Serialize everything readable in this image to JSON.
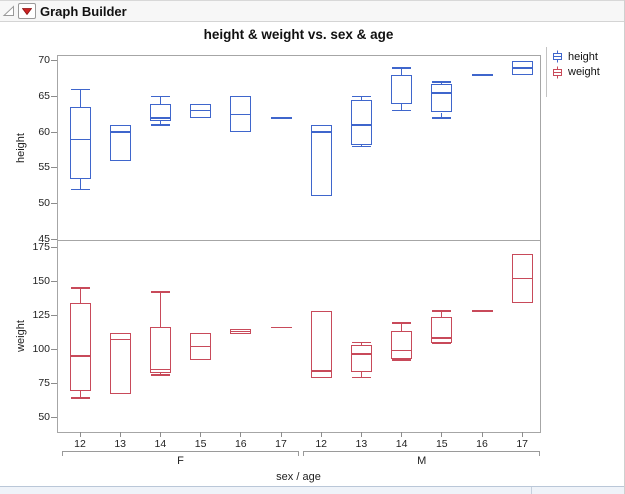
{
  "window": {
    "title": "Graph Builder"
  },
  "icons": {
    "disclosure": "collapse-triangle",
    "menu": "red-triangle-menu"
  },
  "status_bar": {
    "visible": true
  },
  "chart_data": {
    "type": "boxplot",
    "title": "height & weight vs. sex & age",
    "xlabel": "sex / age",
    "grid": false,
    "legend_position": "right",
    "legend": [
      {
        "label": "height",
        "color": "#3F66CC"
      },
      {
        "label": "weight",
        "color": "#C84A5A"
      }
    ],
    "groups": [
      "F",
      "M"
    ],
    "ages": [
      "12",
      "13",
      "14",
      "15",
      "16",
      "17"
    ],
    "panels": [
      {
        "ylabel": "height",
        "color": "#3F66CC",
        "ylim": [
          44.9,
          70.8
        ],
        "yticks": [
          45,
          50,
          55,
          60,
          65,
          70
        ],
        "boxes": [
          {
            "sex": "F",
            "age": "12",
            "lo": 52,
            "q1": 53.5,
            "med": 59,
            "q3": 63.5,
            "hi": 66
          },
          {
            "sex": "F",
            "age": "13",
            "q1": 56,
            "med": 60,
            "q3": 61
          },
          {
            "sex": "F",
            "age": "14",
            "lo": 61,
            "q1": 61.5,
            "med": 62,
            "q3": 64,
            "hi": 65
          },
          {
            "sex": "F",
            "age": "15",
            "q1": 62,
            "med": 63,
            "q3": 64
          },
          {
            "sex": "F",
            "age": "16",
            "q1": 60,
            "med": 62.5,
            "q3": 65
          },
          {
            "sex": "F",
            "age": "17",
            "value": 62
          },
          {
            "sex": "M",
            "age": "12",
            "q1": 51,
            "med": 60,
            "q3": 61
          },
          {
            "sex": "M",
            "age": "13",
            "lo": 58,
            "q1": 58.25,
            "med": 61,
            "q3": 64.5,
            "hi": 65
          },
          {
            "sex": "M",
            "age": "14",
            "lo": 63,
            "q1": 64,
            "med": 64,
            "q3": 68,
            "hi": 69
          },
          {
            "sex": "M",
            "age": "15",
            "lo": 62,
            "q1": 62.75,
            "med": 65.5,
            "q3": 66.75,
            "hi": 67
          },
          {
            "sex": "M",
            "age": "16",
            "value": 68
          },
          {
            "sex": "M",
            "age": "17",
            "q1": 68,
            "med": 69,
            "q3": 70
          }
        ]
      },
      {
        "ylabel": "weight",
        "color": "#C84A5A",
        "ylim": [
          39,
          180.2
        ],
        "yticks": [
          50,
          75,
          100,
          125,
          150,
          175
        ],
        "boxes": [
          {
            "sex": "F",
            "age": "12",
            "lo": 64,
            "q1": 69,
            "med": 95,
            "q3": 134,
            "hi": 145
          },
          {
            "sex": "F",
            "age": "13",
            "q1": 67,
            "med": 107,
            "q3": 112
          },
          {
            "sex": "F",
            "age": "14",
            "lo": 81,
            "q1": 82.5,
            "med": 85,
            "q3": 116.5,
            "hi": 142
          },
          {
            "sex": "F",
            "age": "15",
            "q1": 92,
            "med": 102,
            "q3": 112
          },
          {
            "sex": "F",
            "age": "16",
            "q1": 111,
            "med": 113,
            "q3": 115
          },
          {
            "sex": "F",
            "age": "17",
            "value": 116
          },
          {
            "sex": "M",
            "age": "12",
            "q1": 79,
            "med": 84,
            "q3": 128
          },
          {
            "sex": "M",
            "age": "13",
            "lo": 79,
            "q1": 83,
            "med": 96.5,
            "q3": 103.25,
            "hi": 105
          },
          {
            "sex": "M",
            "age": "14",
            "lo": 92,
            "q1": 93,
            "med": 99,
            "q3": 113,
            "hi": 119
          },
          {
            "sex": "M",
            "age": "15",
            "lo": 104,
            "q1": 104.25,
            "med": 108,
            "q3": 123.75,
            "hi": 128
          },
          {
            "sex": "M",
            "age": "16",
            "value": 128
          },
          {
            "sex": "M",
            "age": "17",
            "q1": 134,
            "med": 152,
            "q3": 170
          }
        ]
      }
    ]
  }
}
